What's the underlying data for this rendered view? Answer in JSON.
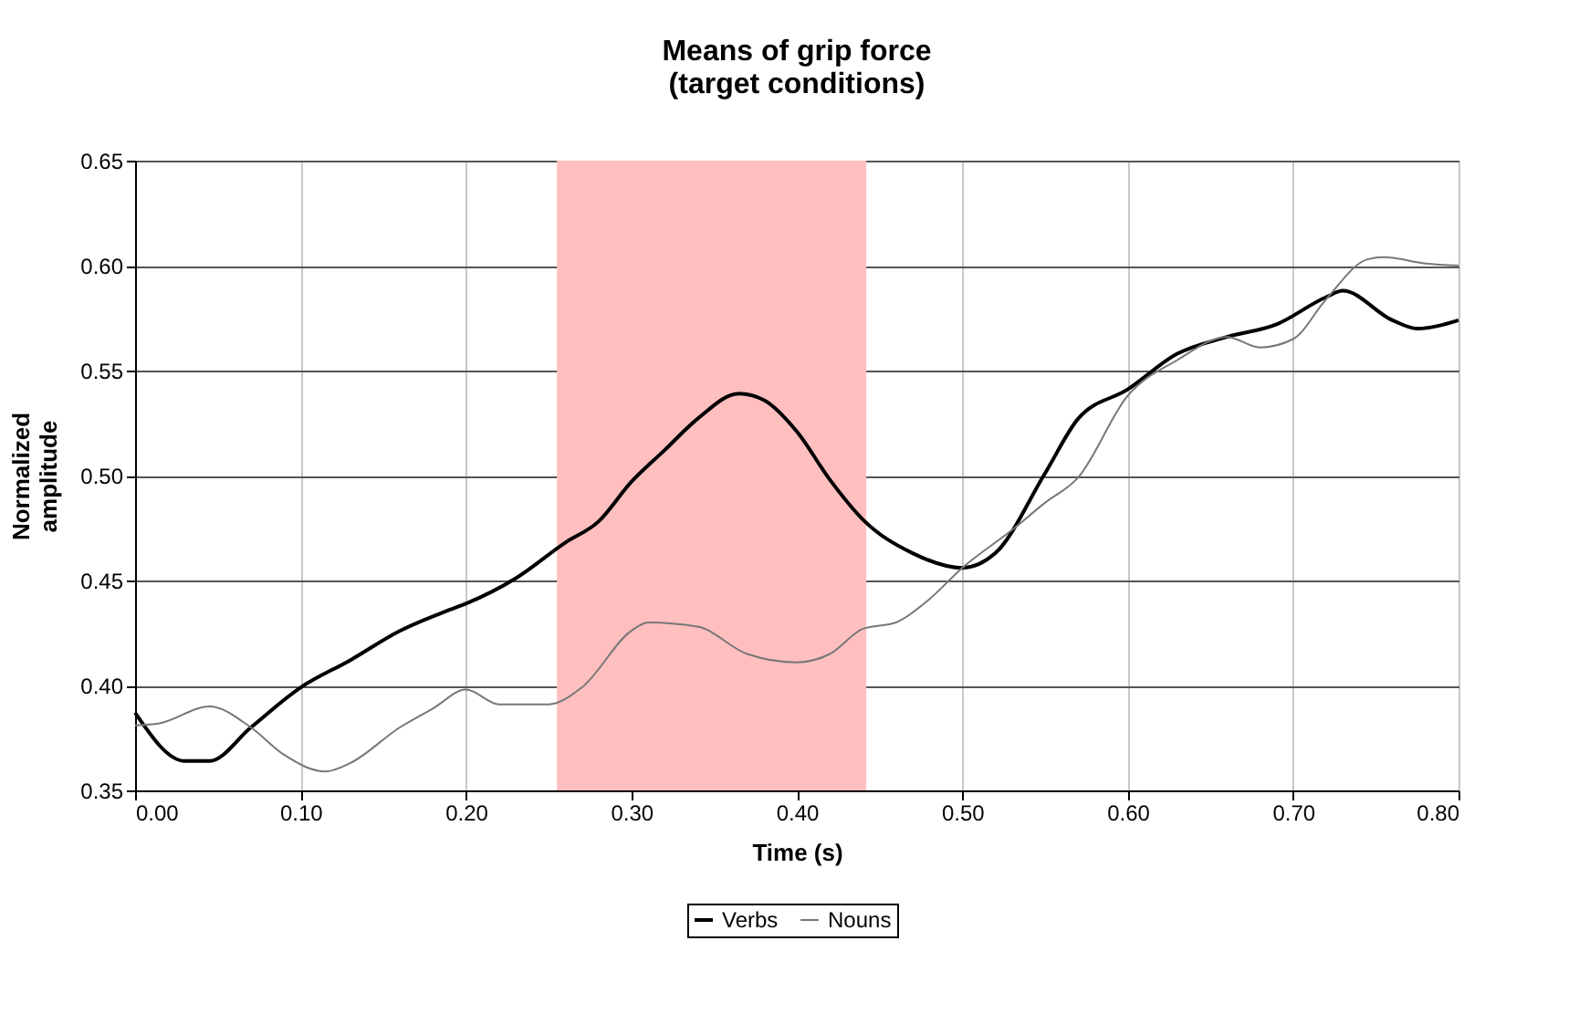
{
  "chart_data": {
    "type": "line",
    "title": "Means of grip force\n(target conditions)",
    "xlabel": "Time (s)",
    "ylabel": "Normalized\namplitude",
    "xlim": [
      0,
      0.8
    ],
    "xticks": [
      {
        "value": 0,
        "label": "0.00"
      },
      {
        "value": 0.1,
        "label": "0.10"
      },
      {
        "value": 0.2,
        "label": "0.20"
      },
      {
        "value": 0.3,
        "label": "0.30"
      },
      {
        "value": 0.4,
        "label": "0.40"
      },
      {
        "value": 0.5,
        "label": "0.50"
      },
      {
        "value": 0.6,
        "label": "0.60"
      },
      {
        "value": 0.7,
        "label": "0.70"
      },
      {
        "value": 0.8,
        "label": "0.80"
      }
    ],
    "ylim": [
      0.35,
      0.65
    ],
    "yticks": [
      {
        "value": 0.35,
        "label": "0.35"
      },
      {
        "value": 0.4,
        "label": "0.40"
      },
      {
        "value": 0.45,
        "label": "0.45"
      },
      {
        "value": 0.5,
        "label": "0.50"
      },
      {
        "value": 0.55,
        "label": "0.55"
      },
      {
        "value": 0.6,
        "label": "0.60"
      },
      {
        "value": 0.65,
        "label": "0.65"
      }
    ],
    "grid": true,
    "legend": "bottom",
    "marker": "none",
    "line_style": "solid",
    "bands": [
      {
        "axis": "x",
        "from": 0.255,
        "to": 0.442,
        "color": "#ffbfbf"
      }
    ],
    "series": [
      {
        "name": "Verbs",
        "color": "#000000",
        "x": [
          0,
          0.03,
          0.045,
          0.07,
          0.1,
          0.13,
          0.16,
          0.19,
          0.2,
          0.23,
          0.26,
          0.28,
          0.3,
          0.32,
          0.34,
          0.365,
          0.38,
          0.4,
          0.42,
          0.44,
          0.47,
          0.5,
          0.52,
          0.55,
          0.57,
          0.6,
          0.63,
          0.66,
          0.69,
          0.72,
          0.73,
          0.76,
          0.775,
          0.8
        ],
        "values": [
          0.387,
          0.364,
          0.364,
          0.38,
          0.399,
          0.412,
          0.426,
          0.436,
          0.439,
          0.451,
          0.468,
          0.478,
          0.497,
          0.512,
          0.527,
          0.539,
          0.536,
          0.521,
          0.498,
          0.479,
          0.463,
          0.456,
          0.463,
          0.501,
          0.527,
          0.541,
          0.558,
          0.566,
          0.572,
          0.585,
          0.588,
          0.574,
          0.57,
          0.574
        ]
      },
      {
        "name": "Nouns",
        "color": "#777777",
        "x": [
          0,
          0.015,
          0.045,
          0.07,
          0.09,
          0.115,
          0.13,
          0.16,
          0.18,
          0.2,
          0.22,
          0.25,
          0.27,
          0.3,
          0.31,
          0.34,
          0.37,
          0.4,
          0.42,
          0.44,
          0.46,
          0.48,
          0.5,
          0.53,
          0.55,
          0.57,
          0.6,
          0.63,
          0.66,
          0.68,
          0.7,
          0.72,
          0.745,
          0.755,
          0.78,
          0.8
        ],
        "values": [
          0.381,
          0.382,
          0.39,
          0.38,
          0.367,
          0.359,
          0.363,
          0.38,
          0.389,
          0.398,
          0.391,
          0.391,
          0.399,
          0.426,
          0.43,
          0.428,
          0.415,
          0.411,
          0.415,
          0.427,
          0.43,
          0.441,
          0.456,
          0.474,
          0.487,
          0.499,
          0.538,
          0.555,
          0.566,
          0.561,
          0.565,
          0.584,
          0.603,
          0.604,
          0.601,
          0.6
        ]
      }
    ]
  }
}
